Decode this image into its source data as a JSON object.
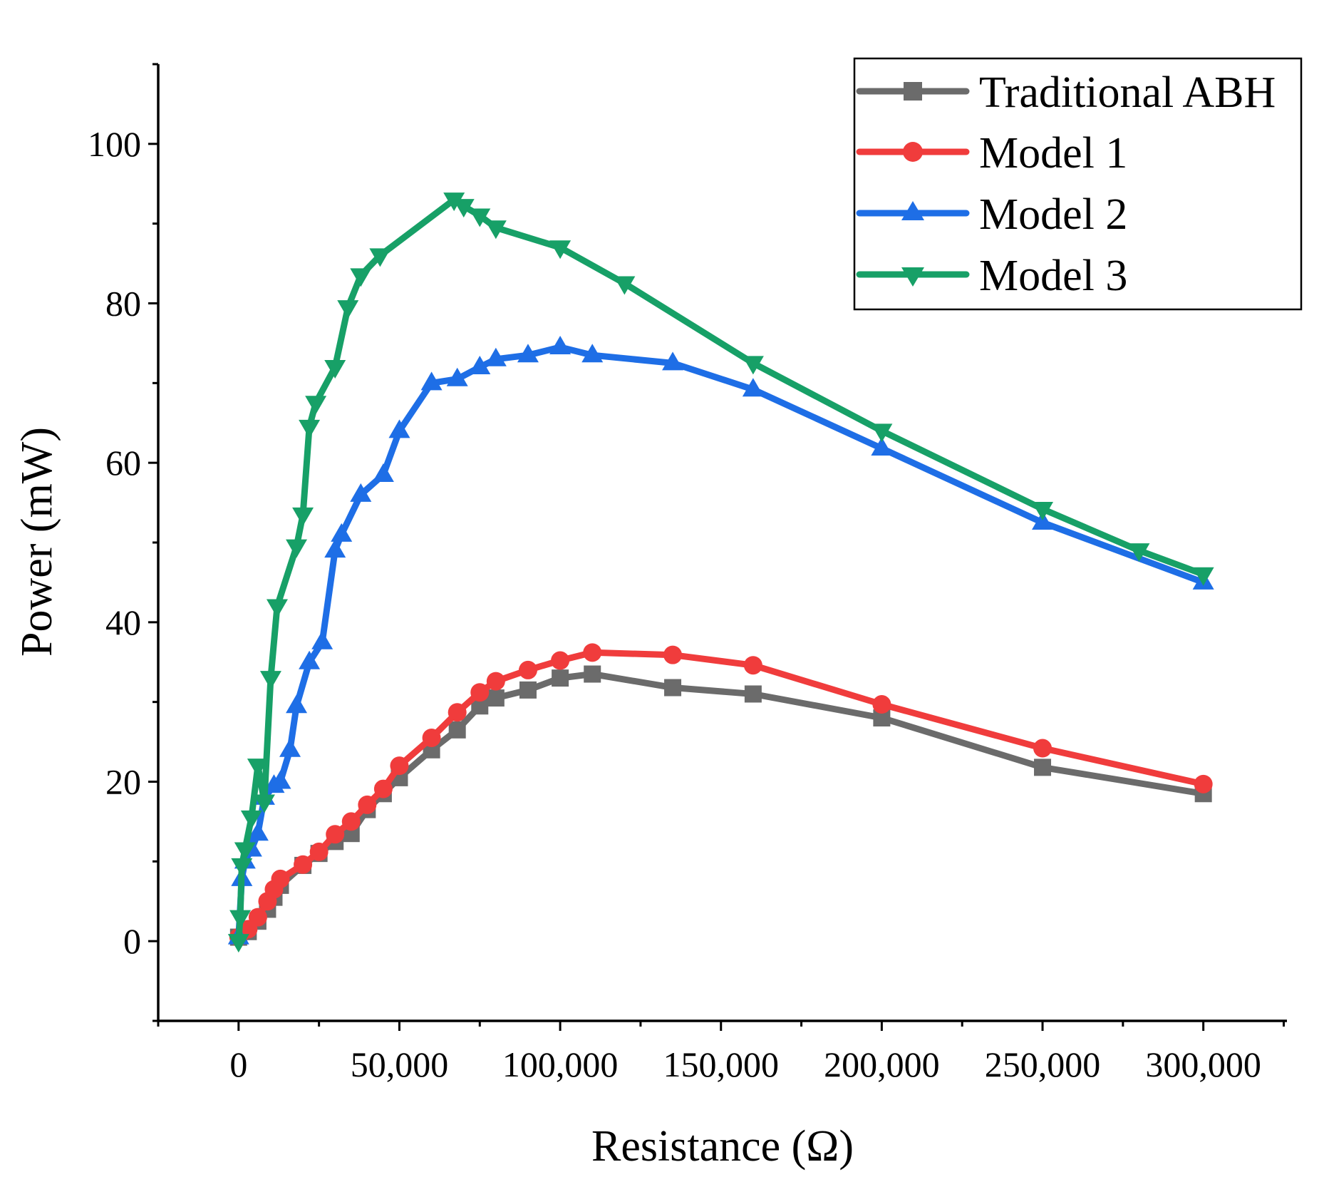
{
  "chart_data": {
    "type": "line",
    "title": "",
    "xlabel": "Resistance (Ω)",
    "ylabel": "Power (mW)",
    "xlim": [
      -25000,
      326000
    ],
    "ylim": [
      -10,
      110
    ],
    "xticks": [
      0,
      50000,
      100000,
      150000,
      200000,
      250000,
      300000
    ],
    "xtick_labels": [
      "0",
      "50,000",
      "100,000",
      "150,000",
      "200,000",
      "250,000",
      "300,000"
    ],
    "yticks": [
      0,
      20,
      40,
      60,
      80,
      100
    ],
    "ytick_labels": [
      "0",
      "20",
      "40",
      "60",
      "80",
      "100"
    ],
    "legend_position": "top-right",
    "series": [
      {
        "name": "Traditional ABH",
        "color": "#6b6b6b",
        "marker": "square",
        "points": [
          [
            0,
            0.5
          ],
          [
            3000,
            1.2
          ],
          [
            6000,
            2.5
          ],
          [
            9000,
            4
          ],
          [
            11000,
            5.5
          ],
          [
            13000,
            7
          ],
          [
            20000,
            9.5
          ],
          [
            25000,
            11
          ],
          [
            30000,
            12.5
          ],
          [
            35000,
            13.5
          ],
          [
            40000,
            16.5
          ],
          [
            45000,
            18.5
          ],
          [
            50000,
            20.5
          ],
          [
            60000,
            24
          ],
          [
            68000,
            26.5
          ],
          [
            75000,
            29.5
          ],
          [
            80000,
            30.5
          ],
          [
            90000,
            31.5
          ],
          [
            100000,
            33
          ],
          [
            110000,
            33.5
          ],
          [
            135000,
            31.8
          ],
          [
            160000,
            31
          ],
          [
            200000,
            28
          ],
          [
            250000,
            21.8
          ],
          [
            300000,
            18.5
          ]
        ]
      },
      {
        "name": "Model 1",
        "color": "#f03c3c",
        "marker": "circle",
        "points": [
          [
            0,
            0.5
          ],
          [
            3000,
            1.5
          ],
          [
            6000,
            3
          ],
          [
            9000,
            5
          ],
          [
            11000,
            6.5
          ],
          [
            13000,
            7.8
          ],
          [
            20000,
            9.6
          ],
          [
            25000,
            11.2
          ],
          [
            30000,
            13.4
          ],
          [
            35000,
            15
          ],
          [
            40000,
            17.1
          ],
          [
            45000,
            19.1
          ],
          [
            50000,
            22
          ],
          [
            60000,
            25.5
          ],
          [
            68000,
            28.7
          ],
          [
            75000,
            31.2
          ],
          [
            80000,
            32.6
          ],
          [
            90000,
            34
          ],
          [
            100000,
            35.2
          ],
          [
            110000,
            36.2
          ],
          [
            135000,
            35.9
          ],
          [
            160000,
            34.6
          ],
          [
            200000,
            29.7
          ],
          [
            250000,
            24.2
          ],
          [
            300000,
            19.7
          ]
        ]
      },
      {
        "name": "Model 2",
        "color": "#1e6ee6",
        "marker": "triangle-up",
        "points": [
          [
            0,
            0.5
          ],
          [
            1000,
            7.8
          ],
          [
            2000,
            10
          ],
          [
            4000,
            11.5
          ],
          [
            6000,
            13.5
          ],
          [
            8000,
            18
          ],
          [
            11000,
            19.5
          ],
          [
            13000,
            20
          ],
          [
            16000,
            24
          ],
          [
            18000,
            29.5
          ],
          [
            22000,
            35
          ],
          [
            26000,
            37.5
          ],
          [
            30000,
            49
          ],
          [
            32000,
            51
          ],
          [
            38000,
            56
          ],
          [
            45000,
            58.5
          ],
          [
            50000,
            64
          ],
          [
            60000,
            70
          ],
          [
            68000,
            70.5
          ],
          [
            75000,
            72
          ],
          [
            80000,
            73
          ],
          [
            90000,
            73.5
          ],
          [
            100000,
            74.5
          ],
          [
            110000,
            73.5
          ],
          [
            135000,
            72.5
          ],
          [
            160000,
            69.2
          ],
          [
            200000,
            61.8
          ],
          [
            250000,
            52.5
          ],
          [
            300000,
            45
          ]
        ]
      },
      {
        "name": "Model 3",
        "color": "#17a067",
        "marker": "triangle-down",
        "points": [
          [
            0,
            0
          ],
          [
            500,
            3
          ],
          [
            1000,
            9.5
          ],
          [
            2000,
            11.5
          ],
          [
            4000,
            15.5
          ],
          [
            6000,
            22
          ],
          [
            8000,
            17.5
          ],
          [
            10000,
            33
          ],
          [
            12000,
            42
          ],
          [
            18000,
            49.5
          ],
          [
            20000,
            53.5
          ],
          [
            22000,
            64.5
          ],
          [
            24000,
            67.5
          ],
          [
            30000,
            72
          ],
          [
            34000,
            79.5
          ],
          [
            38000,
            83.5
          ],
          [
            44000,
            86
          ],
          [
            67000,
            93
          ],
          [
            70000,
            92.2
          ],
          [
            75000,
            91
          ],
          [
            80000,
            89.5
          ],
          [
            100000,
            87
          ],
          [
            120000,
            82.5
          ],
          [
            160000,
            72.5
          ],
          [
            200000,
            64
          ],
          [
            250000,
            54.2
          ],
          [
            280000,
            49
          ],
          [
            300000,
            46
          ]
        ]
      }
    ]
  }
}
